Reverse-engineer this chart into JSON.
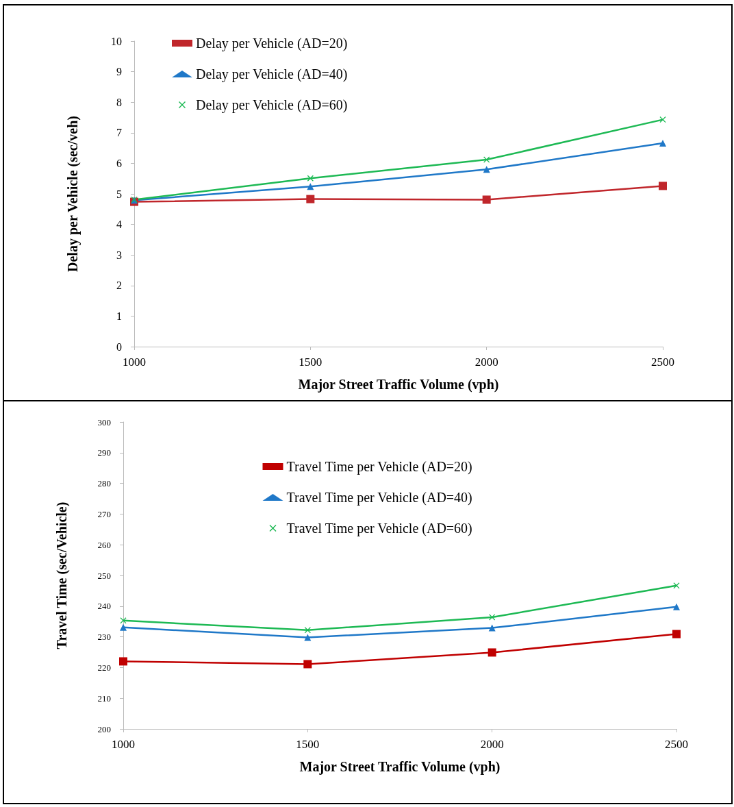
{
  "chart_data": [
    {
      "type": "line",
      "xlabel": "Major Street Traffic Volume (vph)",
      "ylabel": "Delay per Vehicle (sec/veh)",
      "x": [
        1000,
        1500,
        2000,
        2500
      ],
      "xlim": [
        1000,
        2500
      ],
      "xticks": [
        1000,
        1500,
        2000,
        2500
      ],
      "ylim": [
        0,
        10
      ],
      "yticks": [
        0,
        1,
        2,
        3,
        4,
        5,
        6,
        7,
        8,
        9,
        10
      ],
      "grid": false,
      "legend": "top left",
      "series": [
        {
          "name": "Delay per Vehicle (AD=20)",
          "color": "#c0262b",
          "marker": "square",
          "values": [
            4.74,
            4.83,
            4.81,
            5.26
          ]
        },
        {
          "name": "Delay per Vehicle (AD=40)",
          "color": "#1f78c8",
          "marker": "triangle",
          "values": [
            4.79,
            5.24,
            5.8,
            6.66
          ]
        },
        {
          "name": "Delay per Vehicle (AD=60)",
          "color": "#1db954",
          "marker": "cross",
          "values": [
            4.81,
            5.51,
            6.12,
            7.43
          ]
        }
      ]
    },
    {
      "type": "line",
      "xlabel": "Major Street Traffic Volume (vph)",
      "ylabel": "Travel Time (sec/Vehicle)",
      "x": [
        1000,
        1500,
        2000,
        2500
      ],
      "xlim": [
        1000,
        2500
      ],
      "xticks": [
        1000,
        1500,
        2000,
        2500
      ],
      "ylim": [
        200,
        300
      ],
      "yticks": [
        200,
        210,
        220,
        230,
        240,
        250,
        260,
        270,
        280,
        290,
        300
      ],
      "grid": false,
      "legend": "top",
      "series": [
        {
          "name": "Travel Time per Vehicle (AD=20)",
          "color": "#c00000",
          "marker": "square",
          "values": [
            222.0,
            221.1,
            224.9,
            230.9
          ]
        },
        {
          "name": "Travel Time per Vehicle (AD=40)",
          "color": "#1f78c8",
          "marker": "triangle",
          "values": [
            233.1,
            229.8,
            232.9,
            239.8
          ]
        },
        {
          "name": "Travel Time per Vehicle (AD=60)",
          "color": "#1db954",
          "marker": "cross",
          "values": [
            235.3,
            232.2,
            236.4,
            246.7
          ]
        }
      ]
    }
  ]
}
